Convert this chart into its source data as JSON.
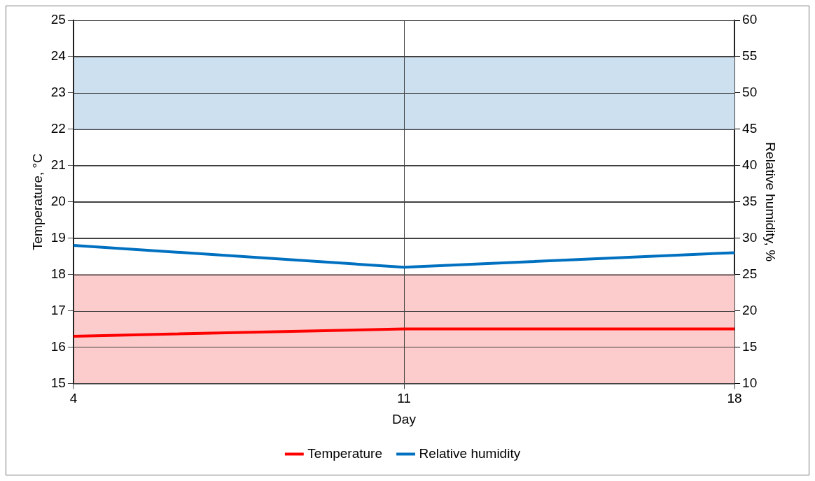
{
  "chart_data": {
    "type": "line",
    "xlabel": "Day",
    "ylabel": "Temperature, °C",
    "y2label": "Relative humidity, %",
    "x": [
      4,
      11,
      18
    ],
    "series": [
      {
        "name": "Temperature",
        "color": "#ff0000",
        "values": [
          16.3,
          16.5,
          16.5
        ]
      },
      {
        "name": "Relative humidity",
        "color": "#0070c0",
        "values": [
          29,
          26,
          28
        ],
        "axis": "y2"
      }
    ],
    "xlim": [
      4,
      18
    ],
    "xticks": [
      4,
      11,
      18
    ],
    "ylim": [
      15,
      25
    ],
    "yticks": [
      15,
      16,
      17,
      18,
      19,
      20,
      21,
      22,
      23,
      24,
      25
    ],
    "y2lim": [
      10,
      60
    ],
    "y2ticks": [
      10,
      15,
      20,
      25,
      30,
      35,
      40,
      45,
      50,
      55,
      60
    ],
    "bands": [
      {
        "axis": "y",
        "from": 15,
        "to": 18,
        "color": "#fccbcb"
      },
      {
        "axis": "y",
        "from": 22,
        "to": 24,
        "color": "#cde0f0"
      }
    ],
    "grid": true,
    "legend": "bottom",
    "marker": "none",
    "line_style": "solid"
  }
}
